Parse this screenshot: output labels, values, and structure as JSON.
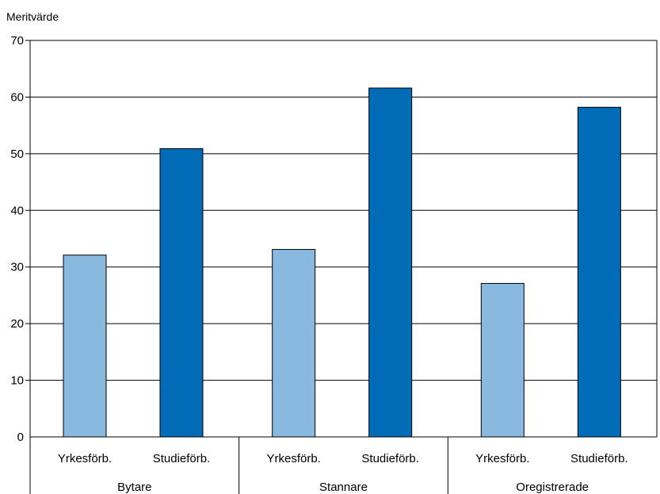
{
  "chart_data": {
    "type": "bar",
    "title": "",
    "ylabel": "Meritvärde",
    "xlabel": "",
    "ylim": [
      0,
      70
    ],
    "yticks": [
      0,
      10,
      20,
      30,
      40,
      50,
      60,
      70
    ],
    "grid": true,
    "groups": [
      {
        "label": "Bytare",
        "categories": [
          "Yrkesförb.",
          "Studieförb."
        ],
        "values": [
          32.1,
          50.9
        ]
      },
      {
        "label": "Stannare",
        "categories": [
          "Yrkesförb.",
          "Studieförb."
        ],
        "values": [
          33.1,
          61.6
        ]
      },
      {
        "label": "Oregistrerade",
        "categories": [
          "Yrkesförb.",
          "Studieförb."
        ],
        "values": [
          27.1,
          58.2
        ]
      }
    ],
    "colors": {
      "yrkesforb": "#8ab9df",
      "studieforb": "#006bb7",
      "grid": "#000000"
    }
  }
}
